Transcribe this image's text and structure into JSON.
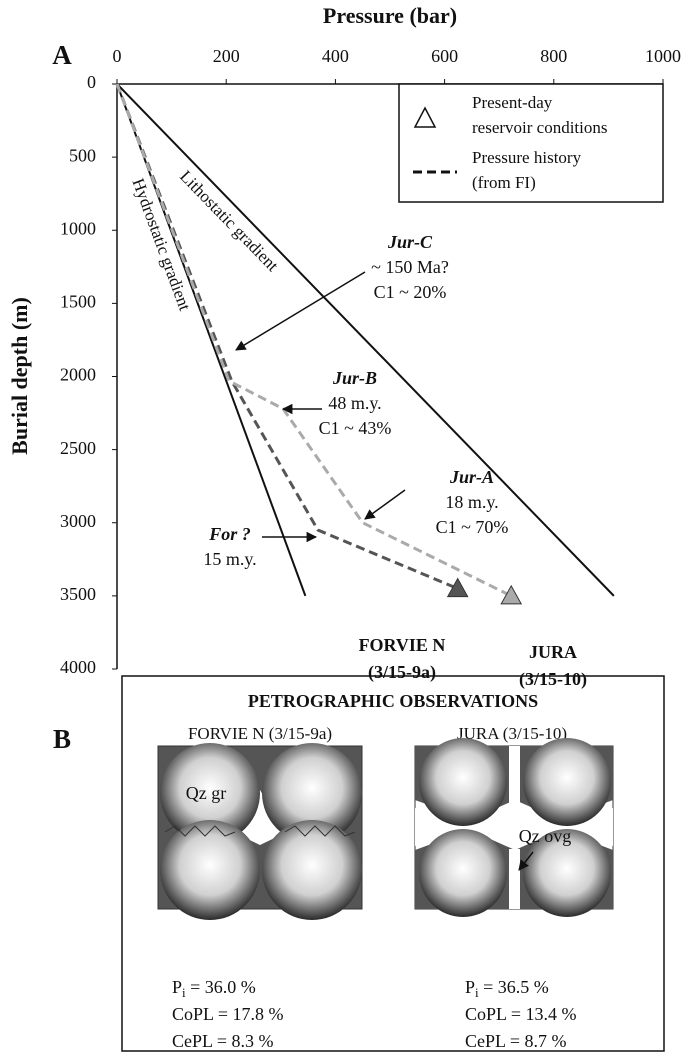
{
  "chart_data": {
    "type": "line",
    "panel": "A",
    "title": "Pressure (bar)",
    "y_label": "Burial depth (m)",
    "xlim": [
      0,
      1000
    ],
    "xticks": [
      0,
      200,
      400,
      600,
      800,
      1000
    ],
    "ylim": [
      0,
      4000
    ],
    "yticks": [
      0,
      500,
      1000,
      1500,
      2000,
      2500,
      3000,
      3500,
      4000
    ],
    "y_inverted": true,
    "series": [
      {
        "label": "Hydrostatic gradient",
        "color": "#111111",
        "dashed": false,
        "x": [
          0,
          345
        ],
        "values": [
          0,
          3500
        ]
      },
      {
        "label": "Lithostatic gradient",
        "color": "#111111",
        "dashed": false,
        "x": [
          0,
          910
        ],
        "values": [
          0,
          3500
        ]
      },
      {
        "color": "#555555",
        "dashed": true,
        "x": [
          0,
          210,
          368,
          624
        ],
        "values": [
          0,
          2030,
          3050,
          3450
        ]
      },
      {
        "color": "#aaaaaa",
        "dashed": true,
        "x": [
          0,
          205,
          304,
          450,
          722
        ],
        "values": [
          0,
          2030,
          2220,
          3000,
          3500
        ]
      }
    ],
    "points": [
      {
        "lines": [
          "FORVIE N",
          "(3/15-9a)"
        ],
        "color": "#555555",
        "x": 624,
        "y": 3450
      },
      {
        "lines": [
          "JURA",
          "(3/15-10)"
        ],
        "color": "#aaaaaa",
        "x": 722,
        "y": 3500
      }
    ],
    "annotations": [
      {
        "lines": [
          "Jur-C",
          "~ 150 Ma?",
          "C1 ~ 20%"
        ]
      },
      {
        "lines": [
          "Jur-B",
          "48 m.y.",
          "C1 ~ 43%"
        ]
      },
      {
        "lines": [
          "Jur-A",
          "18 m.y.",
          "C1 ~ 70%"
        ]
      },
      {
        "lines": [
          "For ?",
          "15 m.y."
        ]
      }
    ],
    "legend": [
      {
        "lines": [
          "Present-day",
          "reservoir conditions"
        ]
      },
      {
        "lines": [
          "Pressure history",
          "(from FI)"
        ]
      }
    ]
  },
  "panel_b": {
    "panel": "B",
    "title": "PETROGRAPHIC OBSERVATIONS",
    "wells": [
      {
        "name": "FORVIE N (3/15-9a)",
        "grain_label": "Qz gr",
        "stats": [
          {
            "label": "P",
            "sub": "i",
            "text": " = 36.0 %"
          },
          {
            "label": "CoPL",
            "text": " = 17.8 %"
          },
          {
            "label": "CePL",
            "text": " = 8.3 %"
          }
        ]
      },
      {
        "name": "JURA (3/15-10)",
        "grain_label": "Qz ovg",
        "stats": [
          {
            "label": "P",
            "sub": "i",
            "text": " = 36.5 %"
          },
          {
            "label": "CoPL",
            "text": " = 13.4 %"
          },
          {
            "label": "CePL",
            "text": " = 8.7 %"
          }
        ]
      }
    ]
  }
}
